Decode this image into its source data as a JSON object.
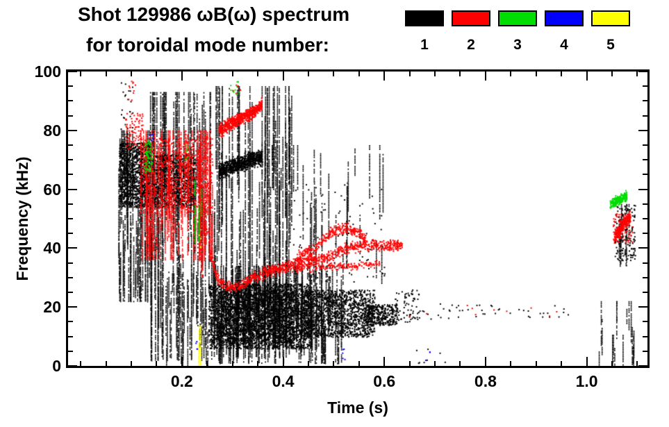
{
  "title_line1": "Shot 129986 ωB(ω) spectrum",
  "title_line2": "for toroidal mode number:",
  "legend": {
    "modes": [
      {
        "label": "1",
        "color": "#000000"
      },
      {
        "label": "2",
        "color": "#ff0000"
      },
      {
        "label": "3",
        "color": "#00dd00"
      },
      {
        "label": "4",
        "color": "#0000ff"
      },
      {
        "label": "5",
        "color": "#ffff00"
      }
    ]
  },
  "chart_data": {
    "type": "scatter",
    "title": "Shot 129986 ωB(ω) spectrum for toroidal mode number 1-5",
    "xlabel": "Time (s)",
    "ylabel": "Frequency (kHz)",
    "xlim": [
      -0.025,
      1.12
    ],
    "ylim": [
      0,
      100
    ],
    "x_major_ticks": [
      0.2,
      0.4,
      0.6,
      0.8,
      1.0
    ],
    "x_tick_labels": [
      "0.2",
      "0.4",
      "0.6",
      "0.8",
      "1.0"
    ],
    "x_minor_step": 0.05,
    "y_major_ticks": [
      0,
      20,
      40,
      60,
      80,
      100
    ],
    "y_tick_labels": [
      "0",
      "20",
      "40",
      "60",
      "80",
      "100"
    ],
    "y_minor_step": 5,
    "grid": false,
    "legend_position": "top-right",
    "series": [
      {
        "name": "mode 1",
        "mode": 1,
        "color": "#000000",
        "bands": [
          {
            "type": "dots",
            "t": [
              0.075,
              0.135
            ],
            "f": [
              54,
              76
            ],
            "n": 1100,
            "s": 2
          },
          {
            "type": "vlines",
            "t": [
              0.073,
              0.135
            ],
            "f": [
              22,
              80
            ],
            "n": 55,
            "len": [
              8,
              40
            ]
          },
          {
            "type": "dots",
            "t": [
              0.078,
              0.102
            ],
            "f": [
              80,
              97
            ],
            "n": 22,
            "s": 2
          },
          {
            "type": "vlines",
            "t": [
              0.135,
              0.26
            ],
            "f": [
              2,
              93
            ],
            "n": 60,
            "len": [
              20,
              85
            ]
          },
          {
            "type": "dots",
            "t": [
              0.14,
              0.225
            ],
            "f": [
              54,
              72
            ],
            "n": 900,
            "s": 2
          },
          {
            "type": "vlines",
            "t": [
              0.15,
              0.26
            ],
            "f": [
              0,
              32
            ],
            "n": 28,
            "len": [
              6,
              26
            ]
          },
          {
            "type": "path",
            "pts": [
              [
                0.272,
                66
              ],
              [
                0.3,
                68
              ],
              [
                0.33,
                70
              ],
              [
                0.358,
                71
              ]
            ],
            "n": 750,
            "th": 4,
            "jf": 1.6,
            "s": 2
          },
          {
            "type": "vlines",
            "t": [
              0.258,
              0.42
            ],
            "f": [
              3,
              95
            ],
            "n": 75,
            "len": [
              14,
              85
            ]
          },
          {
            "type": "dots",
            "t": [
              0.252,
              0.45
            ],
            "f": [
              6,
              28
            ],
            "n": 2600,
            "s": 2
          },
          {
            "type": "dots",
            "t": [
              0.27,
              0.42
            ],
            "f": [
              8,
              26
            ],
            "n": 1200,
            "s": 2
          },
          {
            "type": "dots",
            "t": [
              0.44,
              0.58
            ],
            "f": [
              10,
              26
            ],
            "n": 1300,
            "s": 2
          },
          {
            "type": "dots",
            "t": [
              0.56,
              0.625
            ],
            "f": [
              14,
              21
            ],
            "n": 350,
            "s": 2
          },
          {
            "type": "vlines",
            "t": [
              0.26,
              0.52
            ],
            "f": [
              1,
              34
            ],
            "n": 160,
            "len": [
              8,
              28
            ]
          },
          {
            "type": "vlines",
            "t": [
              0.36,
              0.6
            ],
            "f": [
              28,
              75
            ],
            "n": 40,
            "len": [
              5,
              28
            ]
          },
          {
            "type": "dots",
            "t": [
              0.4,
              0.6
            ],
            "f": [
              28,
              62
            ],
            "n": 90,
            "s": 2
          },
          {
            "type": "dots",
            "t": [
              0.62,
              0.67
            ],
            "f": [
              15,
              26
            ],
            "n": 70,
            "s": 2
          },
          {
            "type": "dots",
            "t": [
              0.67,
              0.97
            ],
            "f": [
              16,
              22
            ],
            "n": 45,
            "s": 2
          },
          {
            "type": "dots",
            "t": [
              0.66,
              0.72
            ],
            "f": [
              1,
              6
            ],
            "n": 8,
            "s": 2
          },
          {
            "type": "vlines",
            "t": [
              1.02,
              1.095
            ],
            "f": [
              0,
              22
            ],
            "n": 16,
            "len": [
              4,
              16
            ]
          },
          {
            "type": "dots",
            "t": [
              1.055,
              1.095
            ],
            "f": [
              36,
              55
            ],
            "n": 160,
            "s": 2
          },
          {
            "type": "vlines",
            "t": [
              1.06,
              1.095
            ],
            "f": [
              34,
              55
            ],
            "n": 10,
            "len": [
              6,
              18
            ]
          }
        ]
      },
      {
        "name": "mode 2",
        "mode": 2,
        "color": "#ff0000",
        "bands": [
          {
            "type": "dots",
            "t": [
              0.088,
              0.122
            ],
            "f": [
              74,
              86
            ],
            "n": 90,
            "s": 2
          },
          {
            "type": "dots",
            "t": [
              0.093,
              0.107
            ],
            "f": [
              90,
              97
            ],
            "n": 10,
            "s": 2
          },
          {
            "type": "vlines",
            "t": [
              0.115,
              0.26
            ],
            "f": [
              36,
              80
            ],
            "n": 80,
            "len": [
              10,
              42
            ]
          },
          {
            "type": "dots",
            "t": [
              0.115,
              0.26
            ],
            "f": [
              52,
              78
            ],
            "n": 650,
            "s": 2
          },
          {
            "type": "path",
            "pts": [
              [
                0.272,
                80
              ],
              [
                0.3,
                83
              ],
              [
                0.325,
                85
              ],
              [
                0.345,
                87
              ],
              [
                0.357,
                89
              ]
            ],
            "n": 620,
            "th": 3,
            "jf": 1.4,
            "s": 2
          },
          {
            "type": "path",
            "pts": [
              [
                0.247,
                48
              ],
              [
                0.256,
                38
              ],
              [
                0.268,
                30
              ],
              [
                0.285,
                27
              ],
              [
                0.31,
                27
              ],
              [
                0.335,
                30
              ],
              [
                0.365,
                32
              ],
              [
                0.405,
                34
              ],
              [
                0.445,
                36
              ],
              [
                0.485,
                37
              ],
              [
                0.52,
                40
              ],
              [
                0.555,
                41
              ],
              [
                0.6,
                41
              ],
              [
                0.635,
                41
              ]
            ],
            "n": 950,
            "th": 2.6,
            "jf": 1.3,
            "s": 2
          },
          {
            "type": "path",
            "pts": [
              [
                0.425,
                37
              ],
              [
                0.46,
                40
              ],
              [
                0.49,
                45
              ],
              [
                0.515,
                47
              ],
              [
                0.545,
                46
              ],
              [
                0.565,
                42
              ]
            ],
            "n": 300,
            "th": 2.2,
            "jf": 1.6,
            "s": 2
          },
          {
            "type": "path",
            "pts": [
              [
                0.36,
                33
              ],
              [
                0.42,
                33
              ],
              [
                0.48,
                34
              ],
              [
                0.545,
                34
              ],
              [
                0.59,
                35
              ]
            ],
            "n": 220,
            "th": 1.6,
            "jf": 1.0,
            "s": 2
          },
          {
            "type": "vlines",
            "t": [
              0.225,
              0.245
            ],
            "f": [
              30,
              60
            ],
            "n": 6,
            "len": [
              10,
              28
            ]
          },
          {
            "type": "dots",
            "t": [
              0.64,
              0.95
            ],
            "f": [
              17,
              21
            ],
            "n": 10,
            "s": 2
          },
          {
            "type": "dots",
            "t": [
              0.298,
              0.315
            ],
            "f": [
              92,
              96
            ],
            "n": 8,
            "s": 2
          },
          {
            "type": "path",
            "pts": [
              [
                1.053,
                44
              ],
              [
                1.063,
                46
              ],
              [
                1.073,
                49
              ],
              [
                1.085,
                51
              ]
            ],
            "n": 260,
            "th": 2.6,
            "jf": 1.6,
            "s": 2
          },
          {
            "type": "dots",
            "t": [
              1.05,
              1.09
            ],
            "f": [
              42,
              52
            ],
            "n": 80,
            "s": 2
          }
        ]
      },
      {
        "name": "mode 3",
        "mode": 3,
        "color": "#00dd00",
        "bands": [
          {
            "type": "dots",
            "t": [
              0.124,
              0.142
            ],
            "f": [
              66,
              77
            ],
            "n": 70,
            "s": 2
          },
          {
            "type": "vlines",
            "t": [
              0.224,
              0.238
            ],
            "f": [
              42,
              63
            ],
            "n": 6,
            "len": [
              8,
              20
            ]
          },
          {
            "type": "dots",
            "t": [
              0.295,
              0.312
            ],
            "f": [
              92,
              97
            ],
            "n": 10,
            "s": 2
          },
          {
            "type": "dots",
            "t": [
              0.205,
              0.213
            ],
            "f": [
              70,
              76
            ],
            "n": 8,
            "s": 2
          },
          {
            "type": "path",
            "pts": [
              [
                1.045,
                55
              ],
              [
                1.057,
                56
              ],
              [
                1.068,
                57
              ],
              [
                1.078,
                58
              ]
            ],
            "n": 230,
            "th": 2.2,
            "jf": 1.3,
            "s": 2
          }
        ]
      },
      {
        "name": "mode 4",
        "mode": 4,
        "color": "#0000ff",
        "bands": [
          {
            "type": "dots",
            "t": [
              0.134,
              0.142
            ],
            "f": [
              76,
              80
            ],
            "n": 6,
            "s": 2
          },
          {
            "type": "dots",
            "t": [
              0.225,
              0.233
            ],
            "f": [
              5,
              10
            ],
            "n": 4,
            "s": 2
          },
          {
            "type": "dots",
            "t": [
              0.515,
              0.525
            ],
            "f": [
              2,
              6
            ],
            "n": 5,
            "s": 2
          },
          {
            "type": "dots",
            "t": [
              0.68,
              0.69
            ],
            "f": [
              2,
              5
            ],
            "n": 3,
            "s": 2
          }
        ]
      },
      {
        "name": "mode 5",
        "mode": 5,
        "color": "#ffff00",
        "bands": [
          {
            "type": "vlines",
            "t": [
              0.231,
              0.239
            ],
            "f": [
              0,
              17
            ],
            "n": 4,
            "len": [
              10,
              17
            ]
          },
          {
            "type": "dots",
            "t": [
              0.232,
              0.238
            ],
            "f": [
              40,
              45
            ],
            "n": 4,
            "s": 2
          }
        ]
      }
    ]
  }
}
